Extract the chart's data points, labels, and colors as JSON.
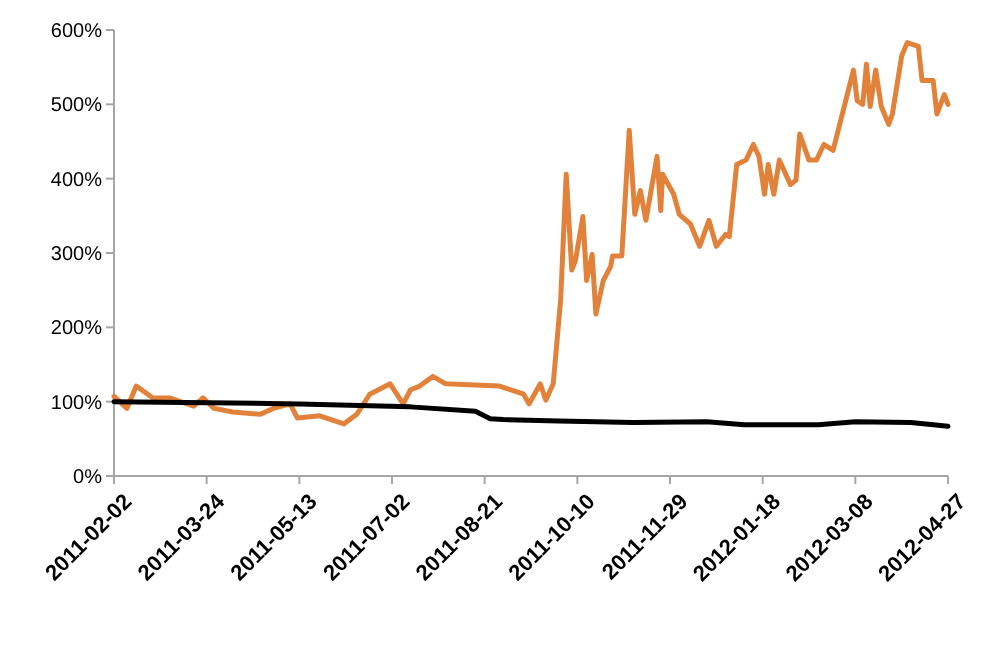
{
  "chart_data": {
    "type": "line",
    "grid": false,
    "marker": "none",
    "line_style": "solid",
    "xlim": [
      "2011-02-02",
      "2012-04-27"
    ],
    "xticks": [
      "2011-02-02",
      "2011-03-24",
      "2011-05-13",
      "2011-07-02",
      "2011-08-21",
      "2011-10-10",
      "2011-11-29",
      "2012-01-18",
      "2012-03-08",
      "2012-04-27"
    ],
    "ylim": [
      0,
      600
    ],
    "yticks": [
      {
        "value": 0,
        "label": "0%"
      },
      {
        "value": 100,
        "label": "100%"
      },
      {
        "value": 200,
        "label": "200%"
      },
      {
        "value": 300,
        "label": "300%"
      },
      {
        "value": 400,
        "label": "400%"
      },
      {
        "value": 500,
        "label": "500%"
      },
      {
        "value": 600,
        "label": "600%"
      }
    ],
    "series": [
      {
        "color": "#e2823a",
        "x": [
          "2011-02-02",
          "2011-02-09",
          "2011-02-14",
          "2011-02-23",
          "2011-03-04",
          "2011-03-17",
          "2011-03-22",
          "2011-03-28",
          "2011-04-07",
          "2011-04-22",
          "2011-04-29",
          "2011-05-08",
          "2011-05-12",
          "2011-05-24",
          "2011-06-06",
          "2011-06-13",
          "2011-06-20",
          "2011-07-01",
          "2011-07-08",
          "2011-07-12",
          "2011-07-17",
          "2011-07-24",
          "2011-07-31",
          "2011-08-29",
          "2011-09-11",
          "2011-09-14",
          "2011-09-20",
          "2011-09-23",
          "2011-09-27",
          "2011-10-01",
          "2011-10-04",
          "2011-10-07",
          "2011-10-09",
          "2011-10-13",
          "2011-10-15",
          "2011-10-18",
          "2011-10-20",
          "2011-10-24",
          "2011-10-28",
          "2011-10-29",
          "2011-11-03",
          "2011-11-07",
          "2011-11-10",
          "2011-11-13",
          "2011-11-16",
          "2011-11-22",
          "2011-11-24",
          "2011-11-25",
          "2011-12-01",
          "2011-12-04",
          "2011-12-10",
          "2011-12-15",
          "2011-12-20",
          "2011-12-24",
          "2011-12-29",
          "2011-12-31",
          "2012-01-04",
          "2012-01-09",
          "2012-01-13",
          "2012-01-16",
          "2012-01-19",
          "2012-01-21",
          "2012-01-24",
          "2012-01-27",
          "2012-02-02",
          "2012-02-05",
          "2012-02-07",
          "2012-02-12",
          "2012-02-16",
          "2012-02-20",
          "2012-02-25",
          "2012-03-02",
          "2012-03-07",
          "2012-03-09",
          "2012-03-12",
          "2012-03-14",
          "2012-03-16",
          "2012-03-19",
          "2012-03-22",
          "2012-03-26",
          "2012-03-28",
          "2012-04-02",
          "2012-04-05",
          "2012-04-11",
          "2012-04-13",
          "2012-04-19",
          "2012-04-21",
          "2012-04-25",
          "2012-04-27"
        ],
        "values": [
          107,
          91,
          121,
          105,
          105,
          94,
          105,
          91,
          86,
          83,
          91,
          97,
          78,
          81,
          70,
          83,
          110,
          124,
          97,
          116,
          121,
          134,
          124,
          121,
          110,
          97,
          124,
          102,
          124,
          237,
          406,
          277,
          290,
          349,
          263,
          298,
          218,
          263,
          282,
          296,
          296,
          465,
          352,
          384,
          344,
          430,
          357,
          406,
          379,
          352,
          339,
          309,
          344,
          309,
          325,
          322,
          419,
          425,
          446,
          430,
          379,
          419,
          379,
          425,
          392,
          398,
          460,
          425,
          425,
          446,
          438,
          497,
          546,
          505,
          500,
          554,
          497,
          546,
          497,
          473,
          487,
          565,
          583,
          578,
          532,
          532,
          487,
          513,
          500
        ]
      },
      {
        "color": "#000000",
        "x": [
          "2011-02-02",
          "2011-05-13",
          "2011-07-12",
          "2011-08-16",
          "2011-08-24",
          "2011-08-31",
          "2011-09-30",
          "2011-11-09",
          "2011-12-19",
          "2012-01-08",
          "2012-02-17",
          "2012-03-08",
          "2012-04-07",
          "2012-04-27"
        ],
        "values": [
          100,
          97,
          93,
          87,
          77,
          76,
          74,
          72,
          73,
          69,
          69,
          73,
          72,
          67
        ]
      }
    ]
  }
}
